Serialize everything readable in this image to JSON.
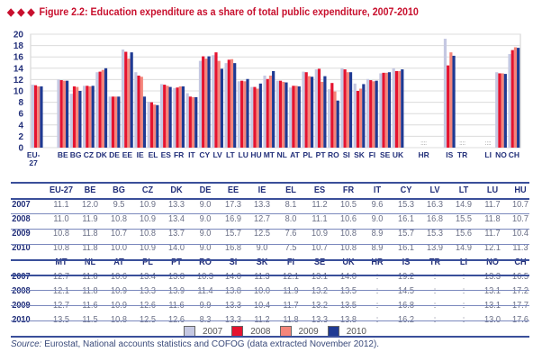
{
  "figure": {
    "title": "Figure 2.2: Education expenditure as a share of total public expenditure, 2007-2010",
    "title_marker": "◆ ◆ ◆"
  },
  "colors": {
    "title": "#c8102e",
    "2007": "#c5c8e2",
    "2008": "#e5132f",
    "2009": "#f4857a",
    "2010": "#1f3a93",
    "grid": "#dcdcdc",
    "axis_text": "#23307a"
  },
  "chart_data": {
    "type": "bar",
    "title": "Education expenditure as a share of total public expenditure, 2007-2010",
    "xlabel": "",
    "ylabel": "",
    "ylim": [
      0,
      20
    ],
    "yticks": [
      0,
      2,
      4,
      6,
      8,
      10,
      12,
      14,
      16,
      18,
      20
    ],
    "grid": true,
    "legend_position": "bottom-center",
    "categories": [
      "EU-27",
      "",
      "BE",
      "BG",
      "CZ",
      "DK",
      "DE",
      "EE",
      "IE",
      "EL",
      "ES",
      "FR",
      "IT",
      "CY",
      "LV",
      "LT",
      "LU",
      "HU",
      "MT",
      "NL",
      "AT",
      "PL",
      "PT",
      "RO",
      "SI",
      "SK",
      "FI",
      "SE",
      "UK",
      "",
      "HR",
      "",
      "IS",
      "TR",
      "",
      "LI",
      "NO",
      "CH"
    ],
    "category_labels": [
      "EU-\n27",
      "",
      "BE",
      "BG",
      "CZ",
      "DK",
      "DE",
      "EE",
      "IE",
      "EL",
      "ES",
      "FR",
      "IT",
      "CY",
      "LV",
      "LT",
      "LU",
      "HU",
      "MT",
      "NL",
      "AT",
      "PL",
      "PT",
      "RO",
      "SI",
      "SK",
      "FI",
      "SE",
      "UK",
      "",
      "HR",
      "",
      "IS",
      "TR",
      "",
      "LI",
      "NO",
      "CH"
    ],
    "not_available_marker": "::::",
    "not_available": [
      "HR",
      "TR",
      "LI"
    ],
    "series": [
      {
        "name": "2007",
        "values": [
          11.1,
          null,
          12.0,
          9.5,
          10.9,
          13.3,
          9.0,
          17.3,
          13.3,
          8.1,
          11.2,
          10.5,
          9.6,
          15.3,
          16.3,
          14.9,
          11.7,
          10.7,
          12.7,
          11.8,
          10.6,
          13.4,
          13.8,
          10.3,
          14.0,
          11.3,
          12.1,
          13.1,
          14.0,
          null,
          null,
          null,
          19.2,
          null,
          null,
          null,
          13.3,
          16.5
        ]
      },
      {
        "name": "2008",
        "values": [
          11.0,
          null,
          11.9,
          10.8,
          10.9,
          13.4,
          9.0,
          16.9,
          12.7,
          8.0,
          11.1,
          10.6,
          9.0,
          16.1,
          16.8,
          15.5,
          11.8,
          10.7,
          12.1,
          11.8,
          10.9,
          13.3,
          13.9,
          11.4,
          13.8,
          10.0,
          11.9,
          13.2,
          13.5,
          null,
          null,
          null,
          14.5,
          null,
          null,
          null,
          13.1,
          17.2
        ]
      },
      {
        "name": "2009",
        "values": [
          10.8,
          null,
          11.8,
          10.7,
          10.8,
          13.7,
          9.0,
          15.7,
          12.5,
          7.6,
          10.9,
          10.8,
          8.9,
          15.7,
          15.3,
          15.6,
          11.7,
          10.4,
          12.7,
          11.6,
          10.9,
          12.6,
          11.6,
          9.9,
          13.3,
          10.4,
          11.7,
          13.2,
          13.5,
          null,
          null,
          null,
          16.8,
          null,
          null,
          null,
          13.1,
          17.7
        ]
      },
      {
        "name": "2010",
        "values": [
          10.8,
          null,
          11.8,
          10.0,
          10.9,
          14.0,
          9.0,
          16.8,
          9.0,
          7.5,
          10.7,
          10.8,
          8.9,
          16.1,
          13.9,
          14.9,
          12.1,
          11.3,
          13.5,
          11.5,
          10.8,
          12.5,
          12.6,
          8.3,
          13.3,
          11.2,
          11.8,
          13.3,
          13.8,
          null,
          null,
          null,
          16.2,
          null,
          null,
          null,
          13.0,
          17.6
        ]
      }
    ]
  },
  "table": {
    "blocks": [
      {
        "headers": [
          "EU-27",
          "BE",
          "BG",
          "CZ",
          "DK",
          "DE",
          "EE",
          "IE",
          "EL",
          "ES",
          "FR",
          "IT",
          "CY",
          "LV",
          "LT",
          "LU",
          "HU"
        ],
        "rows": [
          {
            "year": "2007",
            "values": [
              "11.1",
              "12.0",
              "9.5",
              "10.9",
              "13.3",
              "9.0",
              "17.3",
              "13.3",
              "8.1",
              "11.2",
              "10.5",
              "9.6",
              "15.3",
              "16.3",
              "14.9",
              "11.7",
              "10.7"
            ]
          },
          {
            "year": "2008",
            "values": [
              "11.0",
              "11.9",
              "10.8",
              "10.9",
              "13.4",
              "9.0",
              "16.9",
              "12.7",
              "8.0",
              "11.1",
              "10.6",
              "9.0",
              "16.1",
              "16.8",
              "15.5",
              "11.8",
              "10.7"
            ]
          },
          {
            "year": "2009",
            "values": [
              "10.8",
              "11.8",
              "10.7",
              "10.8",
              "13.7",
              "9.0",
              "15.7",
              "12.5",
              "7.6",
              "10.9",
              "10.8",
              "8.9",
              "15.7",
              "15.3",
              "15.6",
              "11.7",
              "10.4"
            ]
          },
          {
            "year": "2010",
            "values": [
              "10.8",
              "11.8",
              "10.0",
              "10.9",
              "14.0",
              "9.0",
              "16.8",
              "9.0",
              "7.5",
              "10.7",
              "10.8",
              "8.9",
              "16.1",
              "13.9",
              "14.9",
              "12.1",
              "11.3"
            ]
          }
        ]
      },
      {
        "headers": [
          "MT",
          "NL",
          "AT",
          "PL",
          "PT",
          "RO",
          "SI",
          "SK",
          "FI",
          "SE",
          "UK",
          "HR",
          "IS",
          "TR",
          "LI",
          "NO",
          "CH"
        ],
        "rows": [
          {
            "year": "2007",
            "values": [
              "12.7",
              "11.8",
              "10.6",
              "13.4",
              "13.8",
              "10.3",
              "14.0",
              "11.3",
              "12.1",
              "13.1",
              "14.0",
              ":",
              "19.2",
              ":",
              ":",
              "13.3",
              "16.5"
            ]
          },
          {
            "year": "2008",
            "values": [
              "12.1",
              "11.8",
              "10.9",
              "13.3",
              "13.9",
              "11.4",
              "13.8",
              "10.0",
              "11.9",
              "13.2",
              "13.5",
              ":",
              "14.5",
              ":",
              ":",
              "13.1",
              "17.2"
            ]
          },
          {
            "year": "2009",
            "values": [
              "12.7",
              "11.6",
              "10.9",
              "12.6",
              "11.6",
              "9.9",
              "13.3",
              "10.4",
              "11.7",
              "13.2",
              "13.5",
              ":",
              "16.8",
              ":",
              ":",
              "13.1",
              "17.7"
            ]
          },
          {
            "year": "2010",
            "values": [
              "13.5",
              "11.5",
              "10.8",
              "12.5",
              "12.6",
              "8.3",
              "13.3",
              "11.2",
              "11.8",
              "13.3",
              "13.8",
              ":",
              "16.2",
              ":",
              ":",
              "13.0",
              "17.6"
            ]
          }
        ]
      }
    ]
  },
  "legend": [
    {
      "label": "2007",
      "color": "#c5c8e2"
    },
    {
      "label": "2008",
      "color": "#e5132f"
    },
    {
      "label": "2009",
      "color": "#f4857a"
    },
    {
      "label": "2010",
      "color": "#1f3a93"
    }
  ],
  "source": {
    "label": "Source:",
    "text": " Eurostat, National accounts statistics and COFOG (data extracted November 2012)."
  }
}
